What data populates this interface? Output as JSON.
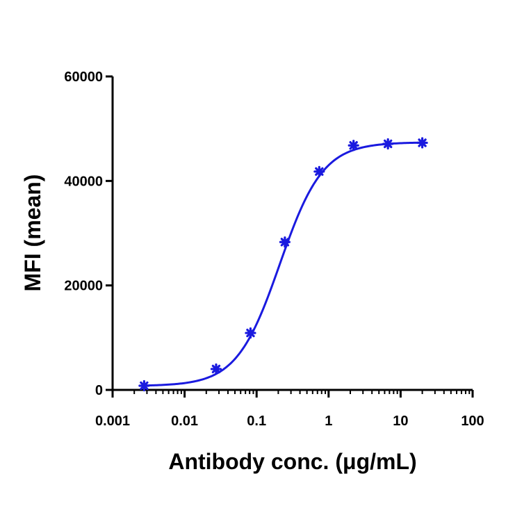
{
  "chart_data": {
    "type": "scatter",
    "title": "",
    "xlabel": "Antibody conc. (μg/mL)",
    "ylabel": "MFI (mean)",
    "x_scale": "log",
    "xlim": [
      0.001,
      100
    ],
    "ylim": [
      0,
      60000
    ],
    "x_ticks": [
      0.001,
      0.01,
      0.1,
      1,
      10,
      100
    ],
    "x_tick_labels": [
      "0.001",
      "0.01",
      "0.1",
      "1",
      "10",
      "100"
    ],
    "y_ticks": [
      0,
      20000,
      40000,
      60000
    ],
    "y_tick_labels": [
      "0",
      "20000",
      "40000",
      "60000"
    ],
    "grid": false,
    "legend": "none",
    "series": [
      {
        "color": "#1a1adf",
        "marker": "asterisk",
        "fit": "four-parameter logistic curve",
        "points": [
          {
            "x": 0.00274,
            "y": 800
          },
          {
            "x": 0.0274,
            "y": 4000
          },
          {
            "x": 0.0823,
            "y": 10900
          },
          {
            "x": 0.247,
            "y": 28300
          },
          {
            "x": 0.741,
            "y": 41800
          },
          {
            "x": 2.22,
            "y": 46800
          },
          {
            "x": 6.67,
            "y": 47100
          },
          {
            "x": 20,
            "y": 47300
          }
        ]
      }
    ]
  }
}
